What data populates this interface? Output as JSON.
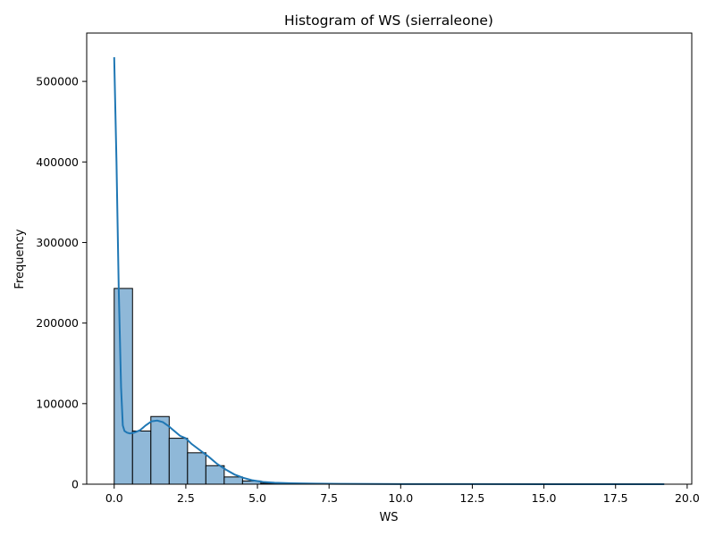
{
  "chart_data": {
    "type": "bar",
    "title": "Histogram of WS (sierraleone)",
    "xlabel": "WS",
    "ylabel": "Frequency",
    "xlim": [
      -0.96,
      20.16
    ],
    "ylim": [
      0,
      560000
    ],
    "xticks": [
      0.0,
      2.5,
      5.0,
      7.5,
      10.0,
      12.5,
      15.0,
      17.5,
      20.0
    ],
    "xtick_labels": [
      "0.0",
      "2.5",
      "5.0",
      "7.5",
      "10.0",
      "12.5",
      "15.0",
      "17.5",
      "20.0"
    ],
    "yticks": [
      0,
      100000,
      200000,
      300000,
      400000,
      500000
    ],
    "ytick_labels": [
      "0",
      "100000",
      "200000",
      "300000",
      "400000",
      "500000"
    ],
    "grid": false,
    "bins": {
      "edges": [
        0.0,
        0.64,
        1.28,
        1.92,
        2.56,
        3.2,
        3.84,
        4.48,
        5.12,
        5.76,
        6.4,
        7.04,
        7.68,
        8.32,
        8.96,
        9.6,
        10.24,
        10.88,
        11.52,
        12.16,
        12.8,
        13.44,
        14.08,
        14.72,
        15.36,
        16.0,
        16.64,
        17.28,
        17.92,
        18.56,
        19.2
      ],
      "counts": [
        243000,
        66000,
        84000,
        57000,
        39000,
        23000,
        9000,
        4000,
        1200,
        600,
        300,
        150,
        90,
        60,
        40,
        30,
        20,
        15,
        10,
        8,
        6,
        5,
        4,
        3,
        2,
        2,
        1,
        1,
        1,
        1
      ]
    },
    "kde": {
      "x": [
        0.0,
        0.08,
        0.16,
        0.24,
        0.3,
        0.36,
        0.45,
        0.55,
        0.7,
        0.9,
        1.1,
        1.3,
        1.5,
        1.7,
        1.9,
        2.1,
        2.3,
        2.5,
        2.7,
        3.0,
        3.3,
        3.6,
        3.9,
        4.2,
        4.5,
        4.8,
        5.2,
        5.6,
        6.2,
        7.0,
        8.0,
        10.0,
        12.5,
        15.0,
        17.5,
        19.2
      ],
      "y": [
        530000,
        400000,
        240000,
        120000,
        73000,
        66000,
        64000,
        63000,
        64000,
        67000,
        73000,
        78000,
        79000,
        77000,
        72000,
        66000,
        60000,
        57000,
        50000,
        42000,
        34000,
        25000,
        18000,
        12000,
        8000,
        5000,
        2800,
        1800,
        1100,
        700,
        400,
        200,
        100,
        60,
        30,
        20
      ]
    },
    "colors": {
      "bar_fill": "#8fb8d8",
      "bar_edge": "#000000",
      "kde_line": "#1f77b4"
    }
  }
}
